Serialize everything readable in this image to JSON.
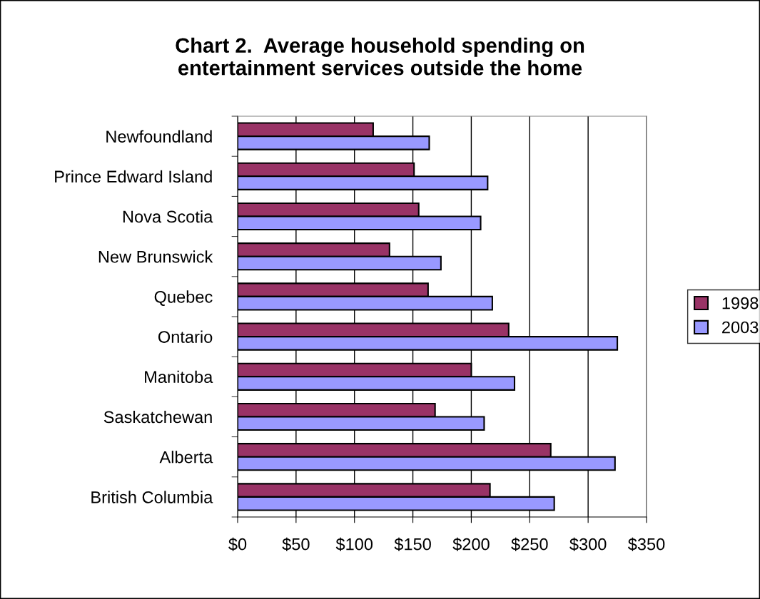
{
  "chart_data": {
    "type": "bar",
    "orientation": "horizontal",
    "title": "Chart 2.  Average household spending on\nentertainment services outside the home",
    "categories": [
      "Newfoundland",
      "Prince Edward Island",
      "Nova Scotia",
      "New Brunswick",
      "Quebec",
      "Ontario",
      "Manitoba",
      "Saskatchewan",
      "Alberta",
      "British Columbia"
    ],
    "series": [
      {
        "name": "1998",
        "color": "#993366",
        "values": [
          116,
          151,
          155,
          130,
          163,
          232,
          200,
          169,
          268,
          216
        ]
      },
      {
        "name": "2003",
        "color": "#9999ff",
        "values": [
          164,
          214,
          208,
          174,
          218,
          325,
          237,
          211,
          323,
          271
        ]
      }
    ],
    "xlim": [
      0,
      350
    ],
    "xticks": [
      {
        "value": 0,
        "label": "$0"
      },
      {
        "value": 50,
        "label": "$50"
      },
      {
        "value": 100,
        "label": "$100"
      },
      {
        "value": 150,
        "label": "$150"
      },
      {
        "value": 200,
        "label": "$200"
      },
      {
        "value": 250,
        "label": "$250"
      },
      {
        "value": 300,
        "label": "$300"
      },
      {
        "value": 350,
        "label": "$350"
      }
    ],
    "grid": "x",
    "legend": "right"
  }
}
